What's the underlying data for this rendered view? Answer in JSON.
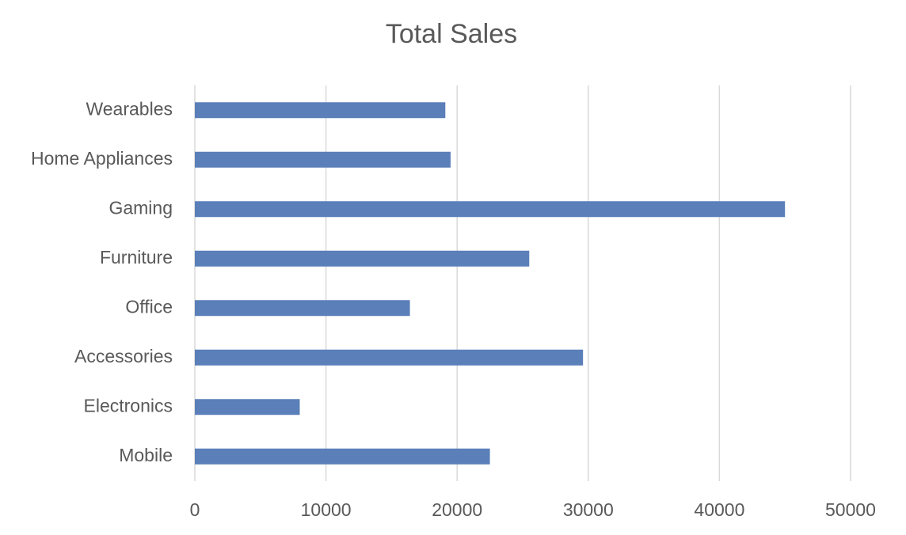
{
  "chart_data": {
    "type": "barh",
    "title": "Total Sales",
    "categories": [
      "Mobile",
      "Electronics",
      "Accessories",
      "Office",
      "Furniture",
      "Gaming",
      "Home Appliances",
      "Wearables"
    ],
    "values": [
      22500,
      8000,
      29600,
      16400,
      25500,
      45000,
      19500,
      19100
    ],
    "color": "#5a7fb9",
    "xlim": [
      0,
      50000
    ],
    "xticks": [
      0,
      10000,
      20000,
      30000,
      40000,
      50000
    ],
    "grid": true
  }
}
